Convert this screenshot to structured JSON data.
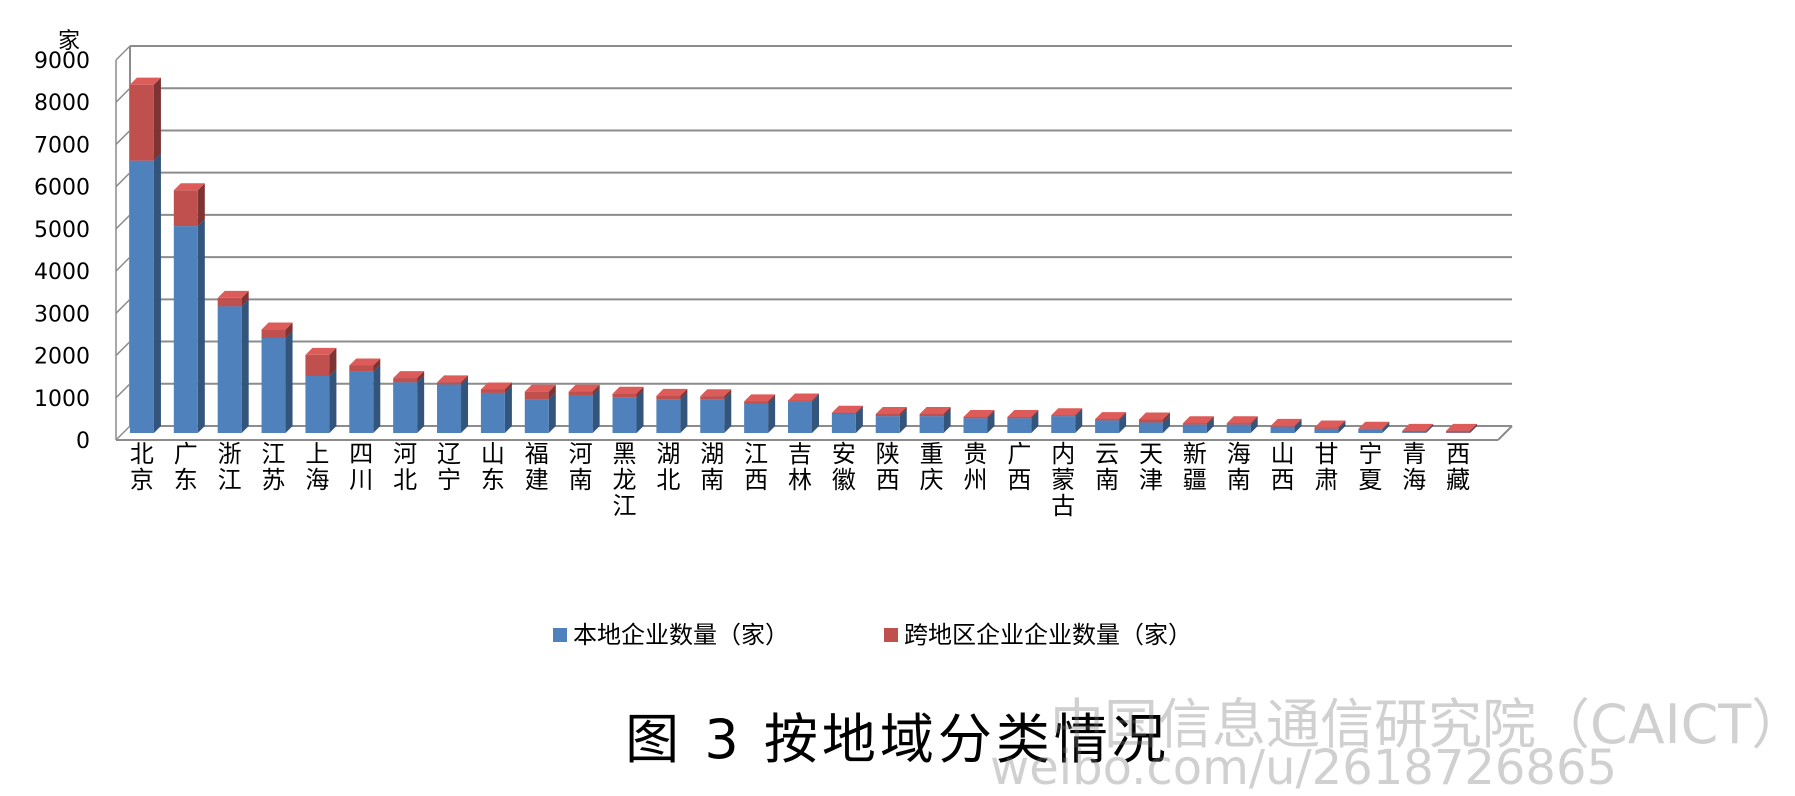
{
  "caption": "图 3  按地域分类情况",
  "watermark": {
    "line1": "中国信息通信研究院（CAICT）",
    "line2": "weibo.com/u/2618726865"
  },
  "colors": {
    "local": "#4F81BD",
    "cross": "#C0504D",
    "grid": "#8c8c8c"
  },
  "chart_data": {
    "type": "bar",
    "stacked": true,
    "ylabel": "家",
    "ylim": [
      0,
      9000
    ],
    "yticks": [
      "0",
      "1000",
      "2000",
      "3000",
      "4000",
      "5000",
      "6000",
      "7000",
      "8000",
      "9000"
    ],
    "grid": true,
    "legend_position": "bottom",
    "categories": [
      "北京",
      "广东",
      "浙江",
      "江苏",
      "上海",
      "四川",
      "河北",
      "辽宁",
      "山东",
      "福建",
      "河南",
      "黑龙江",
      "湖北",
      "湖南",
      "江西",
      "吉林",
      "安徽",
      "陕西",
      "重庆",
      "贵州",
      "广西",
      "内蒙古",
      "云南",
      "天津",
      "新疆",
      "海南",
      "山西",
      "甘肃",
      "宁夏",
      "青海",
      "西藏"
    ],
    "series": [
      {
        "name": "本地企业数量（家）",
        "values": [
          6450,
          4900,
          3000,
          2250,
          1350,
          1450,
          1200,
          1150,
          950,
          800,
          900,
          850,
          800,
          800,
          700,
          750,
          450,
          400,
          400,
          350,
          350,
          400,
          300,
          250,
          200,
          200,
          150,
          100,
          80,
          20,
          10
        ]
      },
      {
        "name": "跨地区企业企业数量（家）",
        "values": [
          1800,
          850,
          200,
          200,
          500,
          150,
          100,
          50,
          80,
          180,
          80,
          80,
          80,
          70,
          50,
          20,
          30,
          50,
          50,
          30,
          30,
          20,
          30,
          70,
          30,
          30,
          20,
          30,
          20,
          30,
          40
        ]
      }
    ]
  }
}
